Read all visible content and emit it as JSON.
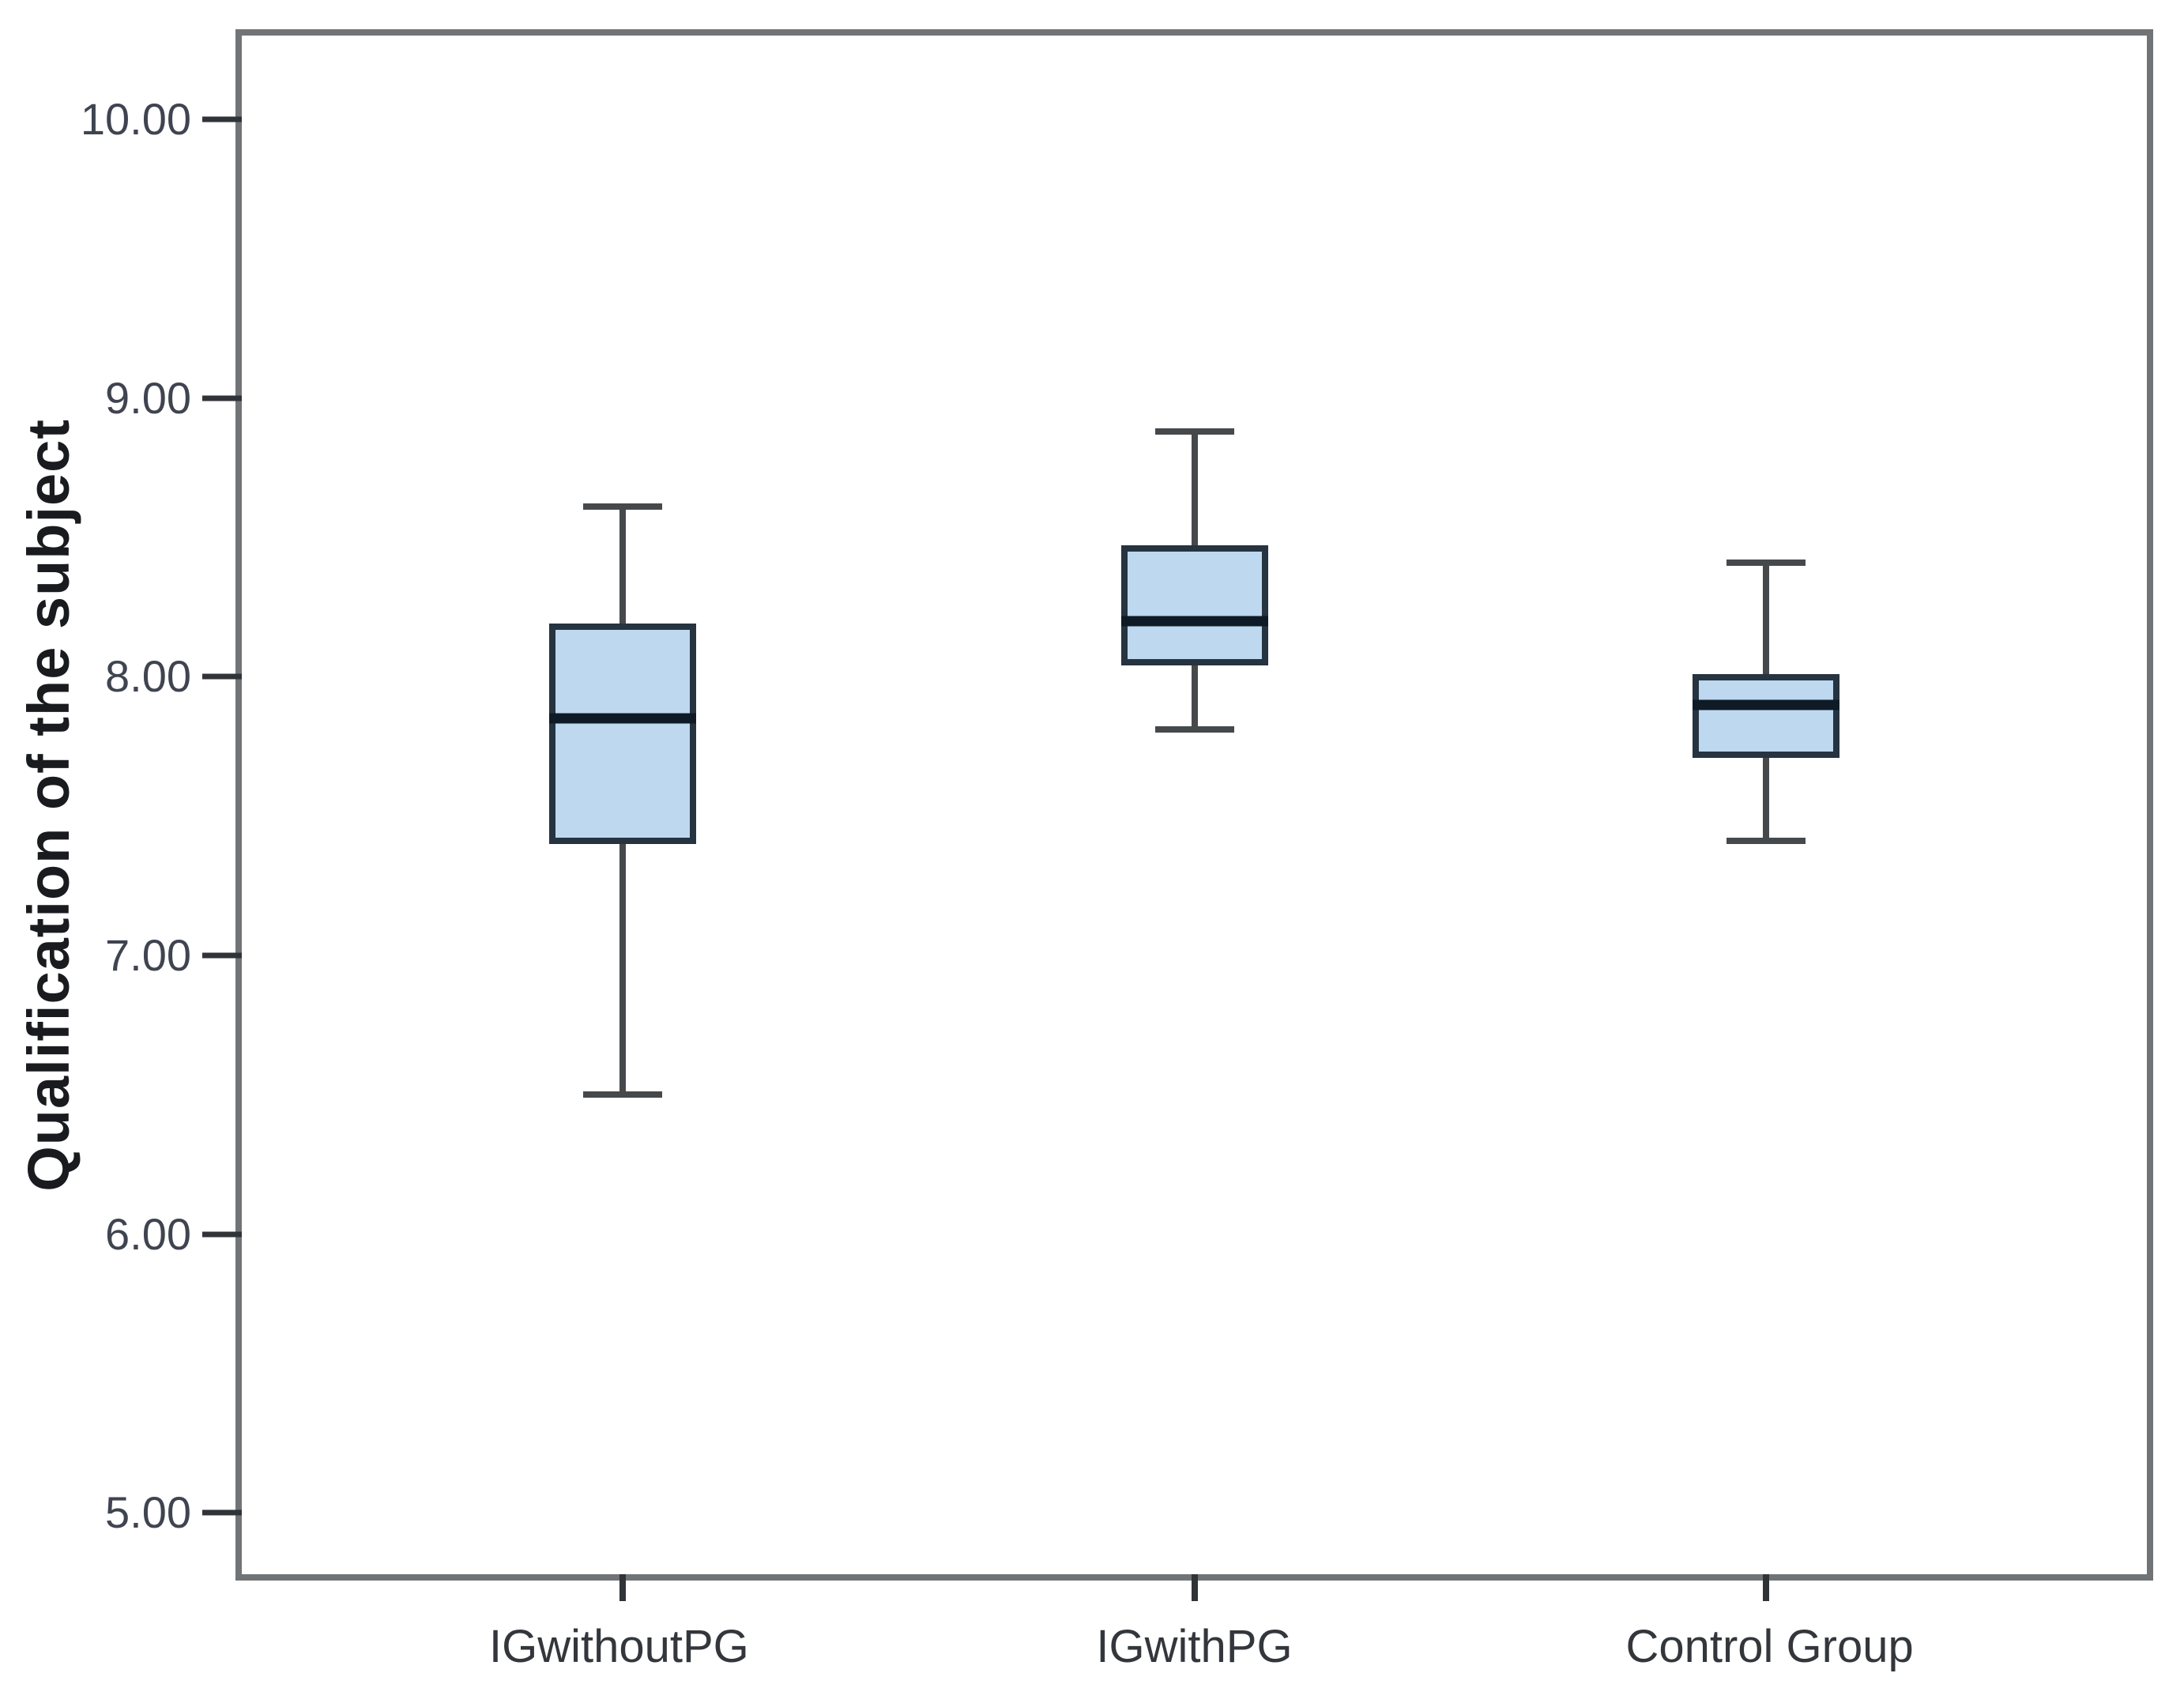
{
  "figure": {
    "background": "#ffffff"
  },
  "chart_data": {
    "type": "boxplot",
    "title": "",
    "xlabel": "",
    "ylabel": "Qualification of the subject",
    "categories": [
      "IGwithoutPG",
      "IGwithPG",
      "Control Group"
    ],
    "series": [
      {
        "category": "IGwithoutPG",
        "min": 6.5,
        "q1": 7.4,
        "median": 7.85,
        "q3": 8.19,
        "max": 8.61
      },
      {
        "category": "IGwithPG",
        "min": 7.81,
        "q1": 8.04,
        "median": 8.2,
        "q3": 8.47,
        "max": 8.88
      },
      {
        "category": "Control Group",
        "min": 7.41,
        "q1": 7.71,
        "median": 7.9,
        "q3": 8.01,
        "max": 8.41
      }
    ],
    "y_axis": {
      "ticks": [
        {
          "value": 10,
          "label": "10.00"
        },
        {
          "value": 9,
          "label": "9.00"
        },
        {
          "value": 8,
          "label": "8.00"
        },
        {
          "value": 7,
          "label": "7.00"
        },
        {
          "value": 6,
          "label": "6.00"
        },
        {
          "value": 5,
          "label": "5.00"
        }
      ]
    },
    "ylim": [
      4.78,
      10.3
    ],
    "grid": false,
    "legend": null,
    "layout": {
      "x_centers_pct": [
        20,
        50,
        80
      ]
    },
    "colors": {
      "box_fill": "#BDD8EF",
      "box_border": "#263340",
      "median": "#0e1b26",
      "whisker": "#46494c",
      "frame": "#717476",
      "tick_mark": "#303438",
      "tick_label": "#3f4450",
      "category_label": "#33373c",
      "axis_title": "#191b1e"
    }
  }
}
